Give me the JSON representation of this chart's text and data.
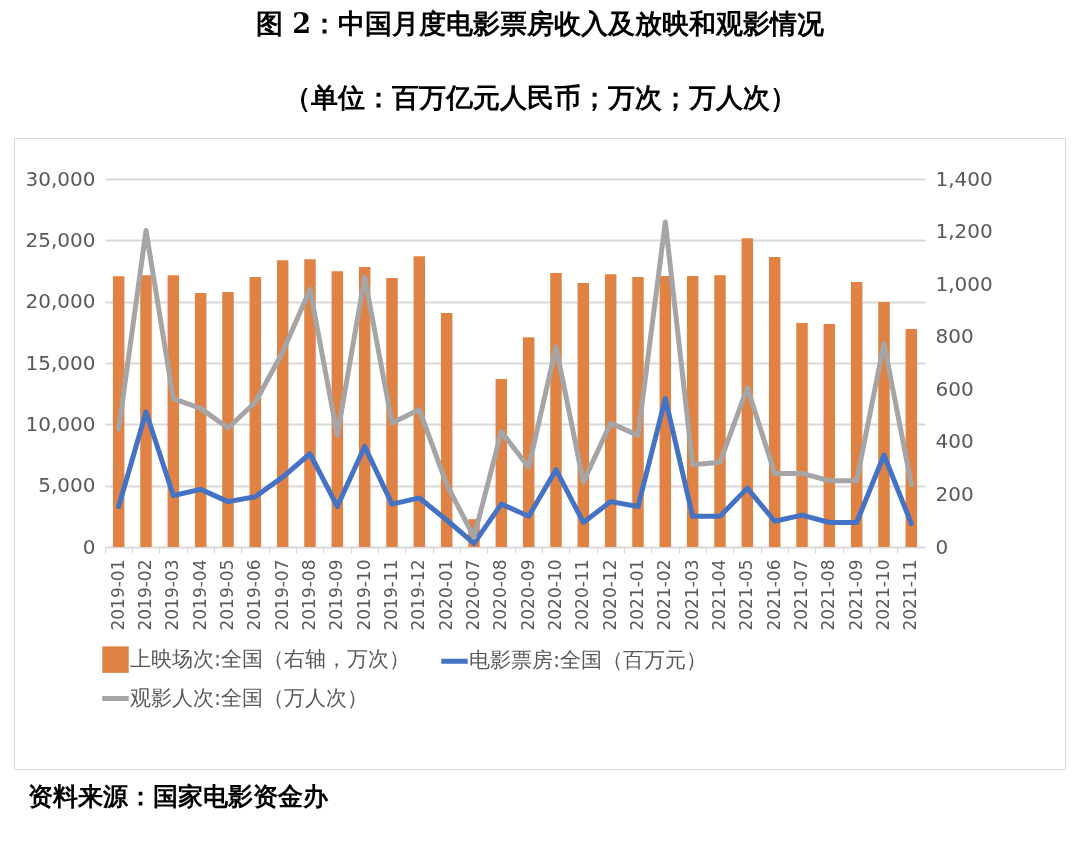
{
  "chart_data": {
    "type": "bar",
    "title": "图 2：中国月度电影票房收入及放映和观影情况",
    "subtitle": "（单位：百万亿元人民币；万次；万人次）",
    "categories": [
      "2019-01",
      "2019-02",
      "2019-03",
      "2019-04",
      "2019-05",
      "2019-06",
      "2019-07",
      "2019-08",
      "2019-09",
      "2019-10",
      "2019-11",
      "2019-12",
      "2020-01",
      "2020-07",
      "2020-08",
      "2020-09",
      "2020-10",
      "2020-11",
      "2020-12",
      "2021-01",
      "2021-02",
      "2021-03",
      "2021-04",
      "2021-05",
      "2021-06",
      "2021-07",
      "2021-08",
      "2021-09",
      "2021-10",
      "2021-11"
    ],
    "series": [
      {
        "name": "上映场次:全国（右轴，万次）",
        "axis": "y2",
        "color": "#df8244",
        "values": [
          1030,
          1034,
          1034,
          966,
          970,
          1027,
          1091,
          1095,
          1049,
          1065,
          1023,
          1106,
          890,
          106,
          639,
          798,
          1042,
          1004,
          1038,
          1027,
          1031,
          1031,
          1034,
          1175,
          1103,
          852,
          848,
          1008,
          932,
          829
        ]
      },
      {
        "name": "电影票房:全国（百万元）",
        "type": "line",
        "color": "#4472c4",
        "values": [
          3300,
          11000,
          4200,
          4700,
          3700,
          4100,
          5700,
          7600,
          3300,
          8200,
          3500,
          4000,
          2200,
          300,
          3500,
          2500,
          6300,
          2000,
          3700,
          3300,
          12100,
          2500,
          2500,
          4800,
          2100,
          2600,
          2000,
          2000,
          7500,
          1900
        ]
      },
      {
        "name": "观影人次:全国（万人次）",
        "type": "line",
        "color": "#a5a5a5",
        "values": [
          9600,
          25800,
          12100,
          11300,
          9700,
          11800,
          15900,
          21000,
          9100,
          22000,
          10100,
          11200,
          5100,
          800,
          9400,
          6500,
          16300,
          5300,
          10100,
          9100,
          26500,
          6700,
          6900,
          13000,
          6000,
          6000,
          5400,
          5400,
          16600,
          5100
        ]
      }
    ],
    "ylim": [
      0,
      30000
    ],
    "yticks": [
      0,
      {
        "value": 5000,
        "label": "5,000"
      },
      {
        "value": 10000,
        "label": "10,000"
      },
      {
        "value": 15000,
        "label": "15,000"
      },
      {
        "value": 20000,
        "label": "20,000"
      },
      {
        "value": 25000,
        "label": "25,000"
      },
      {
        "value": 30000,
        "label": "30,000"
      }
    ],
    "y2lim": [
      0,
      1400
    ],
    "y2ticks": [
      0,
      200,
      400,
      600,
      800,
      {
        "value": 1000,
        "label": "1,000"
      },
      {
        "value": 1200,
        "label": "1,200"
      },
      {
        "value": 1400,
        "label": "1,400"
      }
    ],
    "grid": "y",
    "legend": "bottom",
    "line_style": "solid",
    "marker": "none",
    "annotations": [
      "资料来源：国家电影资金办"
    ]
  }
}
